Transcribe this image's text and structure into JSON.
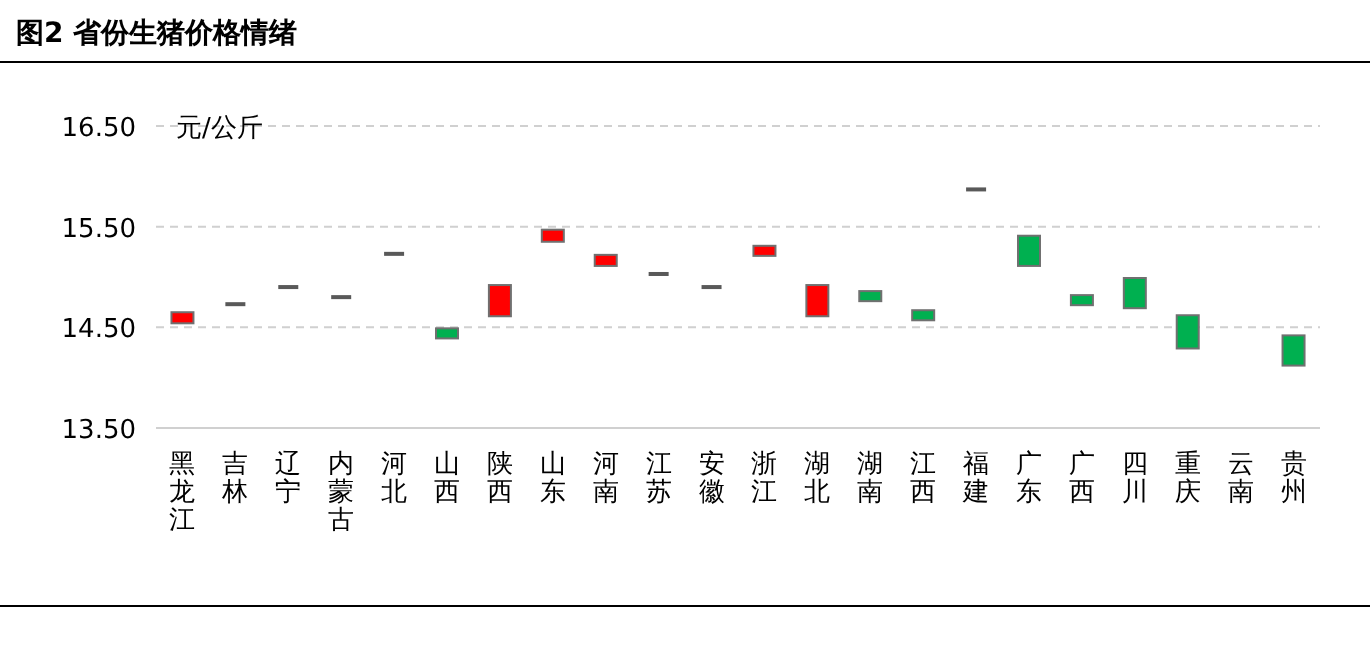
{
  "chart_data": {
    "type": "candlestick",
    "title": "图2 省份生猪价格情绪",
    "ylabel": "元/公斤",
    "categories": [
      "黑龙江",
      "吉林",
      "辽宁",
      "内蒙古",
      "河北",
      "山西",
      "陕西",
      "山东",
      "河南",
      "江苏",
      "安徽",
      "浙江",
      "湖北",
      "湖南",
      "江西",
      "福建",
      "广东",
      "广西",
      "四川",
      "重庆",
      "云南",
      "贵州"
    ],
    "ohlc": [
      [
        14.54,
        14.65,
        14.54,
        14.65
      ],
      [
        14.73,
        14.73,
        14.73,
        14.73
      ],
      [
        14.9,
        14.9,
        14.9,
        14.9
      ],
      [
        14.8,
        14.8,
        14.8,
        14.8
      ],
      [
        15.23,
        15.23,
        15.23,
        15.23
      ],
      [
        14.49,
        14.49,
        14.39,
        14.39
      ],
      [
        14.61,
        14.92,
        14.61,
        14.92
      ],
      [
        15.35,
        15.47,
        15.35,
        15.47
      ],
      [
        15.11,
        15.22,
        15.11,
        15.22
      ],
      [
        15.03,
        15.03,
        15.03,
        15.03
      ],
      [
        14.9,
        14.9,
        14.9,
        14.9
      ],
      [
        15.21,
        15.31,
        15.21,
        15.31
      ],
      [
        14.61,
        14.92,
        14.61,
        14.92
      ],
      [
        14.86,
        14.86,
        14.76,
        14.76
      ],
      [
        14.67,
        14.67,
        14.57,
        14.57
      ],
      [
        15.87,
        15.87,
        15.87,
        15.87
      ],
      [
        15.41,
        15.41,
        15.11,
        15.11
      ],
      [
        14.82,
        14.82,
        14.72,
        14.72
      ],
      [
        14.99,
        14.99,
        14.69,
        14.69
      ],
      [
        14.62,
        14.62,
        14.29,
        14.29
      ],
      null,
      [
        14.42,
        14.42,
        14.12,
        14.12
      ]
    ],
    "colors": [
      "#ff0000",
      "#595959",
      "#595959",
      "#595959",
      "#595959",
      "#00b050",
      "#ff0000",
      "#ff0000",
      "#ff0000",
      "#595959",
      "#595959",
      "#ff0000",
      "#ff0000",
      "#00b050",
      "#00b050",
      "#595959",
      "#00b050",
      "#00b050",
      "#00b050",
      "#00b050",
      null,
      "#00b050"
    ],
    "ylim": [
      13.5,
      16.5
    ],
    "yticks": [
      {
        "value": 13.5,
        "label": "13.50"
      },
      {
        "value": 14.5,
        "label": "14.50"
      },
      {
        "value": 15.5,
        "label": "15.50"
      },
      {
        "value": 16.5,
        "label": "16.50"
      }
    ],
    "grid": "y"
  }
}
